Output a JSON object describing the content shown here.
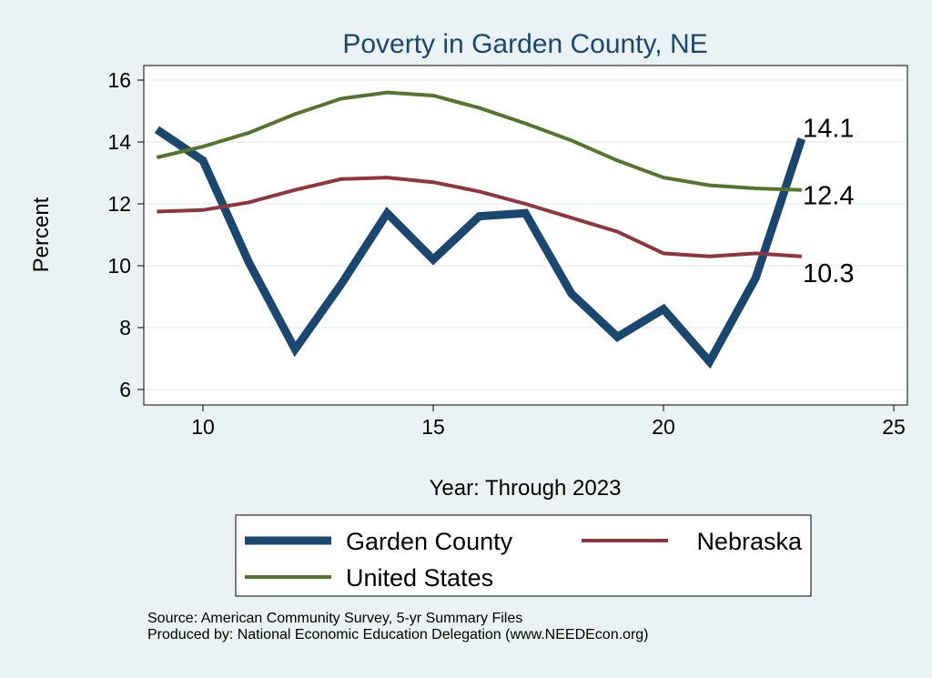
{
  "chart_data": {
    "type": "line",
    "title": "Poverty in Garden County, NE",
    "xlabel": "Year: Through 2023",
    "ylabel": "Percent",
    "xlim": [
      8.7,
      25.3
    ],
    "ylim": [
      5.5,
      16.5
    ],
    "xticks": [
      10,
      15,
      20,
      25
    ],
    "yticks": [
      6,
      8,
      10,
      12,
      14,
      16
    ],
    "grid": true,
    "legend_position": "bottom",
    "x": [
      9,
      10,
      11,
      12,
      13,
      14,
      15,
      16,
      17,
      18,
      19,
      20,
      21,
      22,
      23
    ],
    "series": [
      {
        "name": "Garden County",
        "color": "#1a476f",
        "end_label": "14.1",
        "values": [
          14.4,
          13.4,
          10.1,
          7.3,
          9.4,
          11.7,
          10.2,
          11.6,
          11.7,
          9.1,
          7.7,
          8.6,
          6.9,
          9.6,
          14.1
        ]
      },
      {
        "name": "Nebraska",
        "color": "#90353b",
        "end_label": "10.3",
        "values": [
          11.75,
          11.8,
          12.05,
          12.45,
          12.8,
          12.85,
          12.7,
          12.4,
          12.0,
          11.55,
          11.1,
          10.4,
          10.3,
          10.4,
          10.3
        ]
      },
      {
        "name": "United States",
        "color": "#55752f",
        "end_label": "12.4",
        "values": [
          13.5,
          13.85,
          14.3,
          14.9,
          15.4,
          15.6,
          15.5,
          15.1,
          14.6,
          14.05,
          13.4,
          12.85,
          12.6,
          12.5,
          12.45
        ]
      }
    ]
  },
  "notes": {
    "source": "Source: American Community Survey, 5-yr Summary Files",
    "produced": "Produced by: National Economic Education Delegation (www.NEEDEcon.org)"
  }
}
